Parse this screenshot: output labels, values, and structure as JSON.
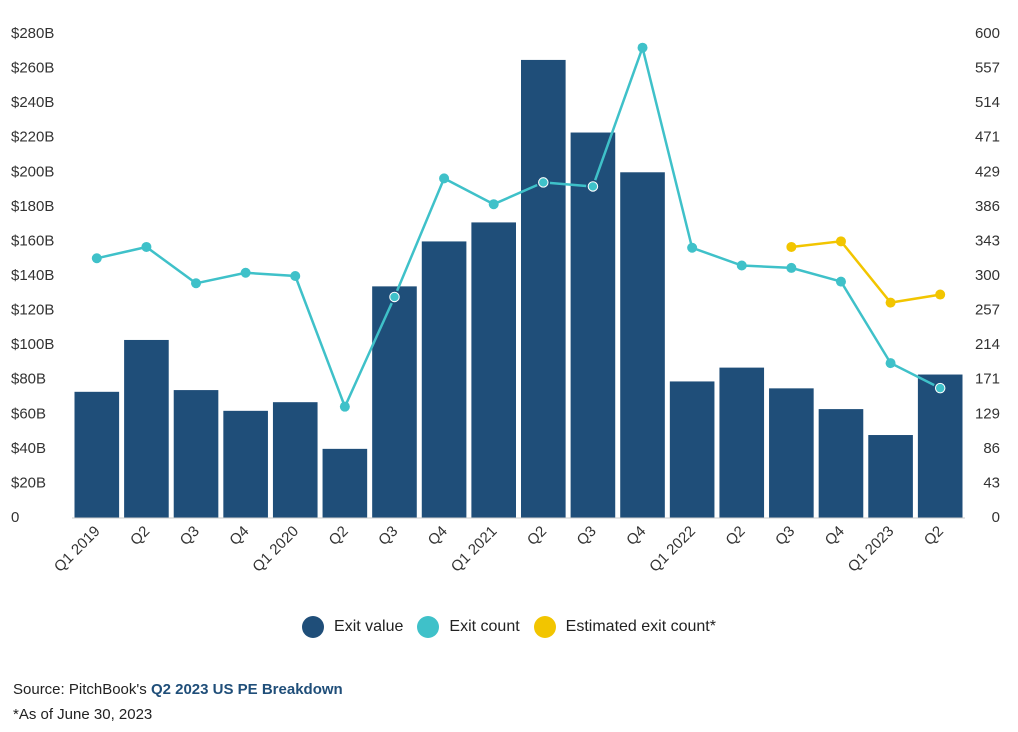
{
  "chart_data": {
    "type": "bar",
    "categories": [
      "Q1 2019",
      "Q2",
      "Q3",
      "Q4",
      "Q1 2020",
      "Q2",
      "Q3",
      "Q4",
      "Q1 2021",
      "Q2",
      "Q3",
      "Q4",
      "Q1 2022",
      "Q2",
      "Q3",
      "Q4",
      "Q1 2023",
      "Q2"
    ],
    "series": [
      {
        "name": "Exit value",
        "type": "bar",
        "axis": "left",
        "color": "#1f4e79",
        "values": [
          73,
          103,
          74,
          62,
          67,
          40,
          134,
          160,
          171,
          265,
          223,
          200,
          79,
          87,
          75,
          63,
          48,
          83
        ]
      },
      {
        "name": "Exit count",
        "type": "line",
        "axis": "right",
        "color": "#3fc1c9",
        "values": [
          322,
          336,
          291,
          304,
          300,
          138,
          274,
          421,
          389,
          416,
          411,
          583,
          335,
          313,
          310,
          293,
          192,
          161
        ],
        "highlighted": [
          6,
          9,
          10,
          17
        ]
      },
      {
        "name": "Estimated exit count*",
        "type": "line",
        "axis": "right",
        "color": "#f2c500",
        "values": [
          null,
          null,
          null,
          null,
          null,
          null,
          null,
          null,
          null,
          null,
          null,
          null,
          null,
          null,
          336,
          343,
          267,
          277
        ]
      }
    ],
    "y_left": {
      "ticks": [
        "$280B",
        "$260B",
        "$240B",
        "$220B",
        "$200B",
        "$180B",
        "$160B",
        "$140B",
        "$120B",
        "$100B",
        "$80B",
        "$60B",
        "$40B",
        "$20B",
        "0"
      ],
      "ylim": [
        0,
        280
      ]
    },
    "y_right": {
      "ticks": [
        "600",
        "557",
        "514",
        "471",
        "429",
        "386",
        "343",
        "300",
        "257",
        "214",
        "171",
        "129",
        "86",
        "43",
        "0"
      ],
      "ylim": [
        0,
        600
      ]
    },
    "legend_position": "bottom",
    "grid": false
  },
  "footer": {
    "source_prefix": "Source: PitchBook's ",
    "source_link": "Q2 2023 US PE Breakdown",
    "note": "*As of June 30, 2023"
  }
}
